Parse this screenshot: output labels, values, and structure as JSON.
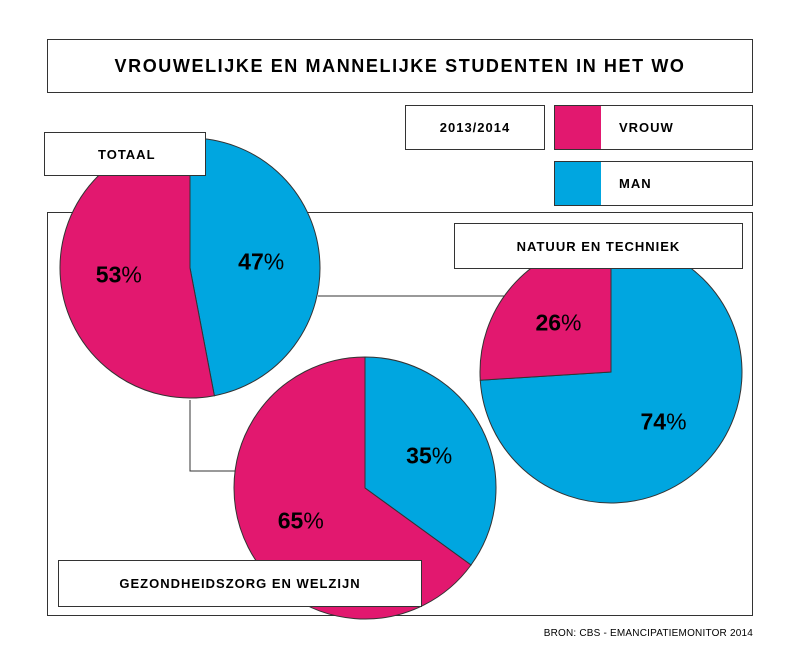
{
  "title": "VROUWELIJKE EN MANNELIJKE STUDENTEN IN HET WO",
  "period": "2013/2014",
  "legend": [
    {
      "label": "VROUW",
      "color": "#e2186f"
    },
    {
      "label": "MAN",
      "color": "#00a6e0"
    }
  ],
  "source": "BRON: CBS - EMANCIPATIEMONITOR 2014",
  "chart_data": [
    {
      "type": "pie",
      "title": "TOTAAL",
      "categories": [
        "VROUW",
        "MAN"
      ],
      "values": [
        53,
        47
      ],
      "labels": [
        "53%",
        "47%"
      ]
    },
    {
      "type": "pie",
      "title": "NATUUR EN TECHNIEK",
      "categories": [
        "VROUW",
        "MAN"
      ],
      "values": [
        26,
        74
      ],
      "labels": [
        "26%",
        "74%"
      ]
    },
    {
      "type": "pie",
      "title": "GEZONDHEIDSZORG EN WELZIJN",
      "categories": [
        "VROUW",
        "MAN"
      ],
      "values": [
        65,
        35
      ],
      "labels": [
        "65%",
        "35%"
      ]
    }
  ]
}
